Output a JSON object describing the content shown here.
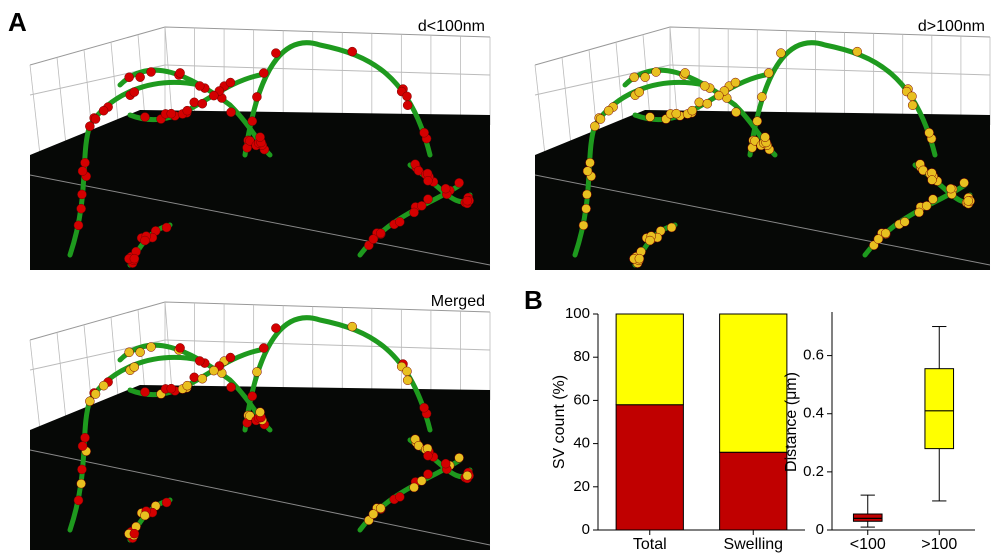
{
  "figure": {
    "panel_a_label": "A",
    "panel_b_label": "B",
    "panels": [
      {
        "label": "d<100nm"
      },
      {
        "label": "d>100nm"
      },
      {
        "label": "Merged"
      }
    ]
  },
  "chart_data": [
    {
      "type": "stacked_bar",
      "ylabel": "SV count (%)",
      "categories": [
        "Total",
        "Swelling"
      ],
      "series": [
        {
          "color": "#c00000",
          "values": [
            58,
            36
          ]
        },
        {
          "color": "#ffff00",
          "values": [
            42,
            64
          ]
        }
      ],
      "ylim": [
        0,
        100
      ],
      "yticks": [
        0,
        20,
        40,
        60,
        80,
        100
      ]
    },
    {
      "type": "box",
      "ylabel": "Distance (μm)",
      "categories": [
        "<100",
        ">100"
      ],
      "boxes": [
        {
          "color": "#c00000",
          "min": 0.01,
          "q1": 0.03,
          "median": 0.04,
          "q3": 0.055,
          "max": 0.12
        },
        {
          "color": "#ffff00",
          "min": 0.1,
          "q1": 0.28,
          "median": 0.41,
          "q3": 0.555,
          "max": 0.7
        }
      ],
      "ylim": [
        0,
        0.75
      ],
      "yticks": [
        0,
        0.2,
        0.4,
        0.6
      ]
    }
  ]
}
